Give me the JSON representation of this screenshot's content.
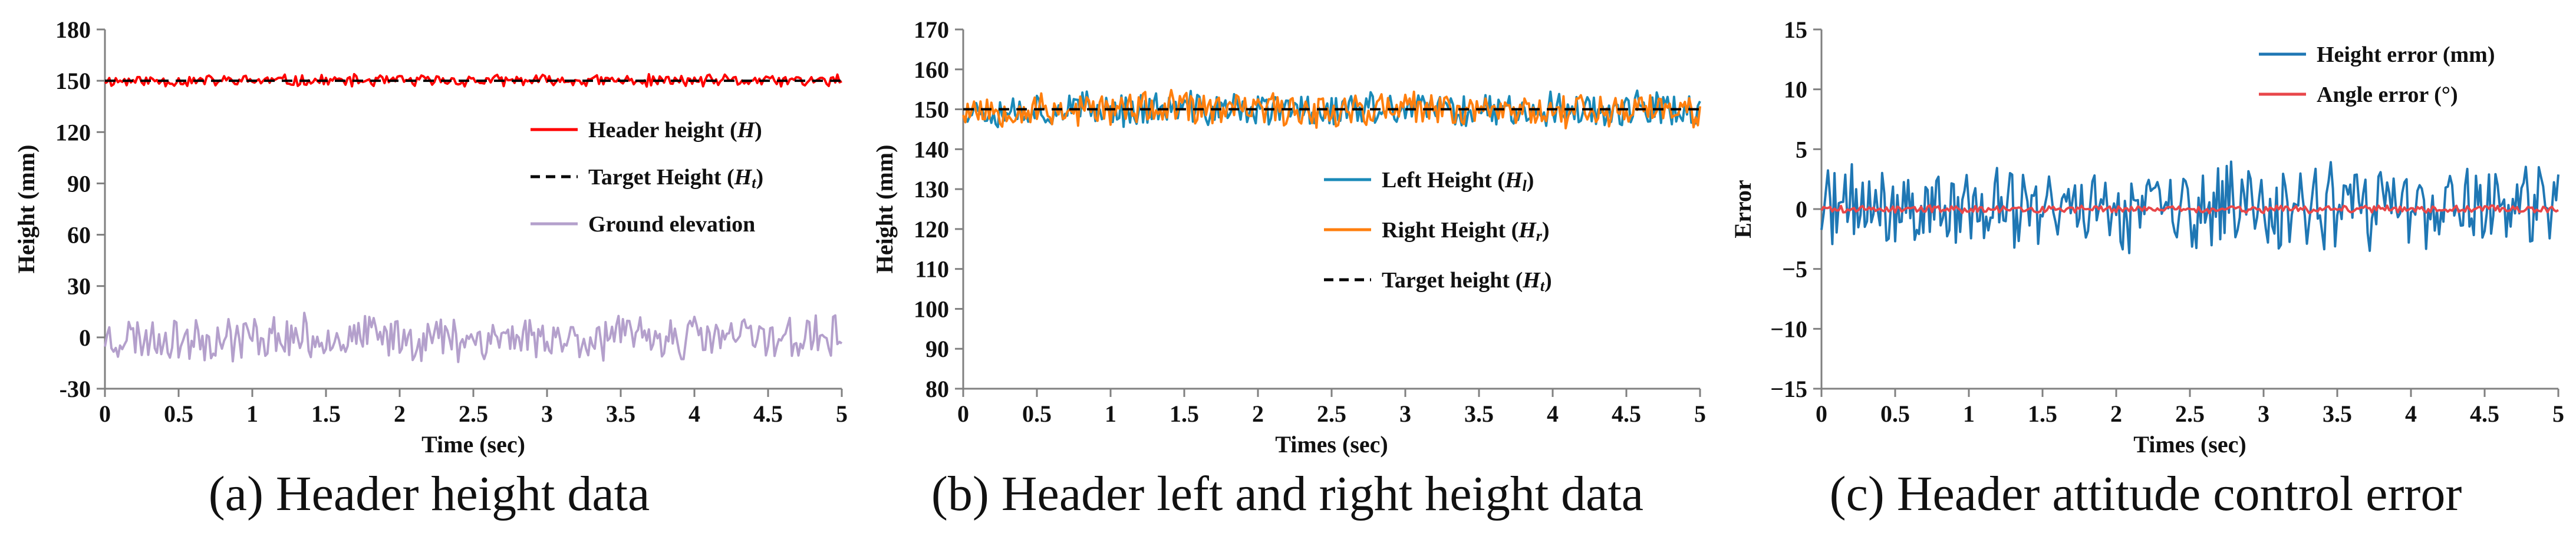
{
  "chart_data": [
    {
      "type": "line",
      "caption": "(a) Header height data",
      "xlabel": "Time (sec)",
      "ylabel": "Height (mm)",
      "xlim": [
        0,
        5
      ],
      "ylim": [
        -30,
        180
      ],
      "xticks": [
        "0",
        "0.5",
        "1",
        "1.5",
        "2",
        "2.5",
        "3",
        "3.5",
        "4",
        "4.5",
        "5"
      ],
      "yticks": [
        "-30",
        "0",
        "30",
        "60",
        "90",
        "120",
        "150",
        "180"
      ],
      "grid": false,
      "legend_position": "right-middle",
      "series": [
        {
          "name": "Header height",
          "name_symbol": "H",
          "name_sub": "",
          "color": "#ff0000",
          "dash": "solid",
          "baseline": 150,
          "amplitude": 4,
          "seed": 11
        },
        {
          "name": "Target Height",
          "name_symbol": "H",
          "name_sub": "t",
          "color": "#000000",
          "dash": "dashed",
          "constant": 150
        },
        {
          "name": "Ground elevation",
          "name_symbol": "",
          "name_sub": "",
          "color": "#b4a0cc",
          "dash": "solid",
          "baseline": 0,
          "amplitude": 15,
          "seed": 23
        }
      ]
    },
    {
      "type": "line",
      "caption": "(b) Header left and right height data",
      "xlabel": "Times (sec)",
      "ylabel": "Height (mm)",
      "xlim": [
        0,
        5
      ],
      "ylim": [
        80,
        170
      ],
      "xticks": [
        "0",
        "0.5",
        "1",
        "1.5",
        "2",
        "2.5",
        "3",
        "3.5",
        "4",
        "4.5",
        "5"
      ],
      "yticks": [
        "80",
        "90",
        "100",
        "110",
        "120",
        "130",
        "140",
        "150",
        "160",
        "170"
      ],
      "grid": false,
      "legend_position": "right-middle",
      "series": [
        {
          "name": "Left Height",
          "name_symbol": "H",
          "name_sub": "l",
          "color": "#1a8ab8",
          "dash": "solid",
          "baseline": 150,
          "amplitude": 5,
          "seed": 37
        },
        {
          "name": "Right Height",
          "name_symbol": "H",
          "name_sub": "r",
          "color": "#ff7f0e",
          "dash": "solid",
          "baseline": 150,
          "amplitude": 5,
          "seed": 53
        },
        {
          "name": "Target height",
          "name_symbol": "H",
          "name_sub": "t",
          "color": "#000000",
          "dash": "dashed",
          "constant": 150
        }
      ]
    },
    {
      "type": "line",
      "caption": "(c) Header attitude control error",
      "xlabel": "Times (sec)",
      "ylabel": "Error",
      "xlim": [
        0,
        5
      ],
      "ylim": [
        -15,
        15
      ],
      "xticks": [
        "0",
        "0.5",
        "1",
        "1.5",
        "2",
        "2.5",
        "3",
        "3.5",
        "4",
        "4.5",
        "5"
      ],
      "yticks": [
        "−15",
        "−10",
        "−5",
        "0",
        "5",
        "10",
        "15"
      ],
      "grid": false,
      "legend_position": "top-right",
      "series": [
        {
          "name": "Height error (mm)",
          "name_symbol": "",
          "name_sub": "",
          "color": "#1f77b4",
          "dash": "solid",
          "baseline": 0,
          "amplitude": 4.2,
          "seed": 71
        },
        {
          "name": "Angle error (°)",
          "name_symbol": "",
          "name_sub": "",
          "color": "#e8474a",
          "dash": "solid",
          "baseline": 0,
          "amplitude": 0.35,
          "seed": 89
        }
      ]
    }
  ]
}
